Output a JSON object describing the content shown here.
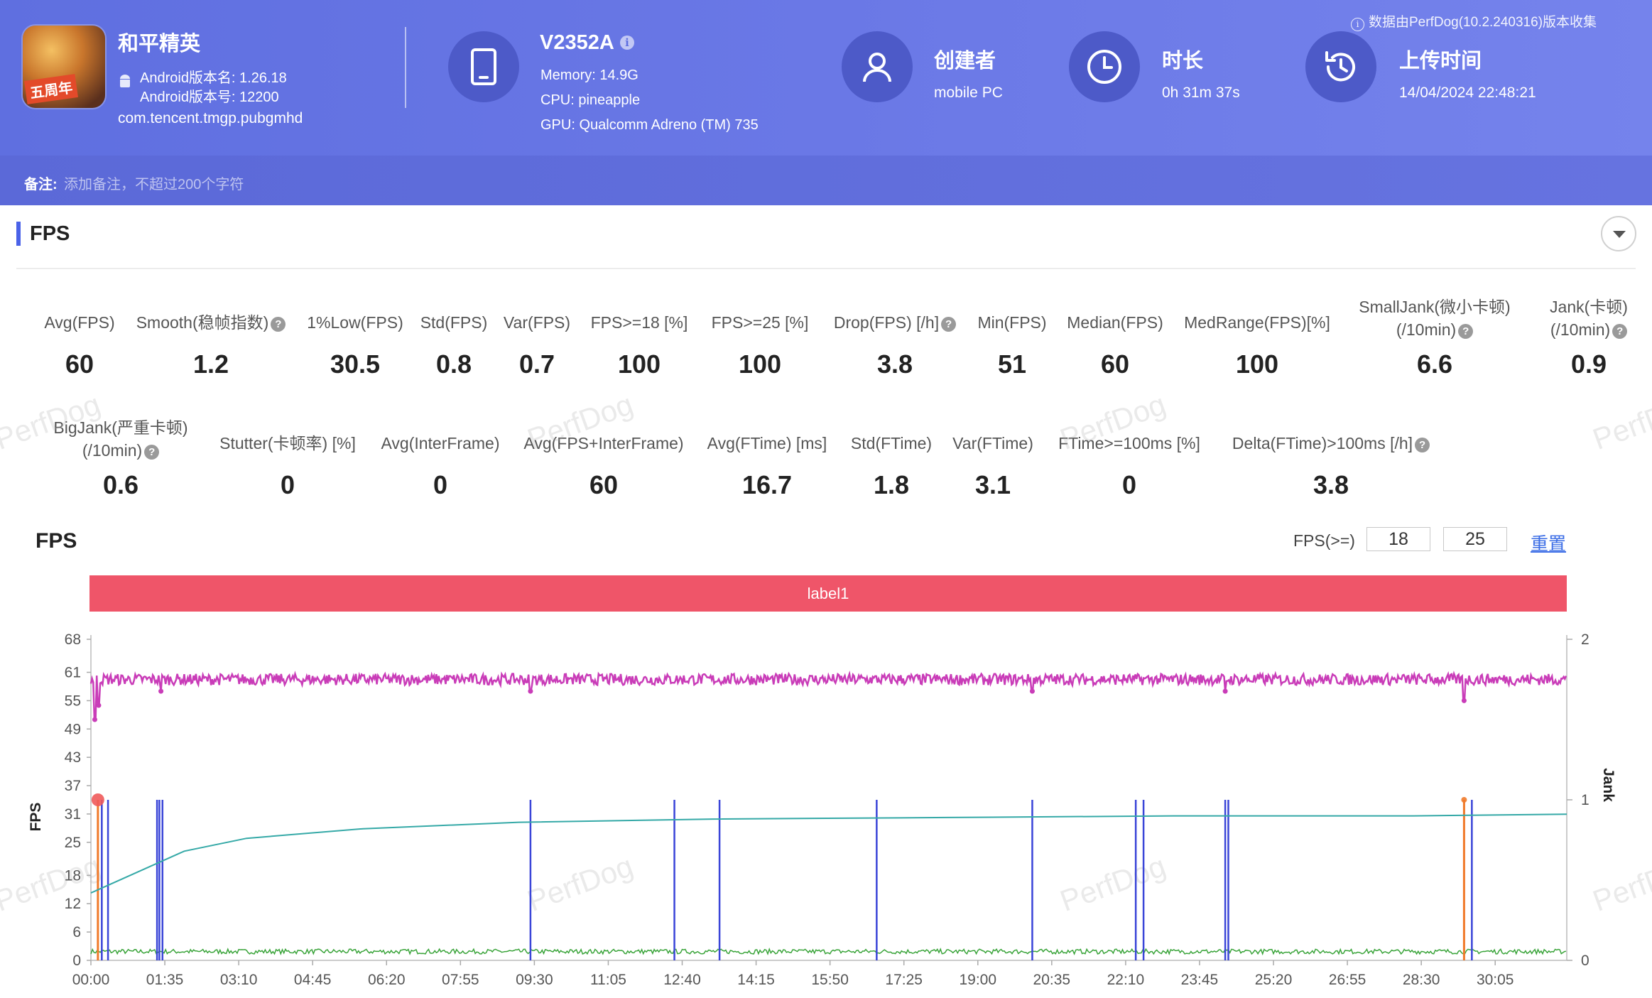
{
  "header": {
    "app_name": "和平精英",
    "app_icon_badge": "五周年",
    "android_version_name": "Android版本名: 1.26.18",
    "android_version_code": "Android版本号: 12200",
    "package": "com.tencent.tmgp.pubgmhd",
    "device": {
      "name": "V2352A",
      "info_glyph": "i",
      "memory": "Memory: 14.9G",
      "cpu": "CPU: pineapple",
      "gpu": "GPU: Qualcomm Adreno (TM) 735"
    },
    "creator": {
      "title": "创建者",
      "value": "mobile PC"
    },
    "duration": {
      "title": "时长",
      "value": "0h 31m 37s"
    },
    "upload": {
      "title": "上传时间",
      "value": "14/04/2024 22:48:21"
    },
    "collect_note": "数据由PerfDog(10.2.240316)版本收集",
    "remark_label": "备注:",
    "remark_placeholder": "添加备注，不超过200个字符"
  },
  "section": {
    "title": "FPS"
  },
  "stats_row1": [
    {
      "label": "Avg(FPS)",
      "value": "60"
    },
    {
      "label": "Smooth(稳帧指数)",
      "value": "1.2",
      "help": true
    },
    {
      "label": "1%Low(FPS)",
      "value": "30.5"
    },
    {
      "label": "Std(FPS)",
      "value": "0.8"
    },
    {
      "label": "Var(FPS)",
      "value": "0.7"
    },
    {
      "label": "FPS>=18 [%]",
      "value": "100"
    },
    {
      "label": "FPS>=25 [%]",
      "value": "100"
    },
    {
      "label": "Drop(FPS) [/h]",
      "value": "3.8",
      "help": true
    },
    {
      "label": "Min(FPS)",
      "value": "51"
    },
    {
      "label": "Median(FPS)",
      "value": "60"
    },
    {
      "label": "MedRange(FPS)[%]",
      "value": "100"
    },
    {
      "label": "SmallJank(微小卡顿)",
      "label2": "(/10min)",
      "value": "6.6",
      "help": true
    },
    {
      "label": "Jank(卡顿)",
      "label2": "(/10min)",
      "value": "0.9",
      "help": true
    }
  ],
  "stats_row2": [
    {
      "label": "BigJank(严重卡顿)",
      "label2": "(/10min)",
      "value": "0.6",
      "help": true
    },
    {
      "label": "Stutter(卡顿率) [%]",
      "value": "0"
    },
    {
      "label": "Avg(InterFrame)",
      "value": "0"
    },
    {
      "label": "Avg(FPS+InterFrame)",
      "value": "60"
    },
    {
      "label": "Avg(FTime) [ms]",
      "value": "16.7"
    },
    {
      "label": "Std(FTime)",
      "value": "1.8"
    },
    {
      "label": "Var(FTime)",
      "value": "3.1"
    },
    {
      "label": "FTime>=100ms [%]",
      "value": "0"
    },
    {
      "label": "Delta(FTime)>100ms [/h]",
      "value": "3.8",
      "help": true
    }
  ],
  "help_glyph": "?",
  "watermark_text": "PerfDog",
  "chart_header": {
    "title": "FPS",
    "threshold_label": "FPS(>=)",
    "threshold1": "18",
    "threshold2": "25",
    "reset_label": "重置",
    "label_bar": "label1"
  },
  "colors": {
    "fps_line": "#c93cb8",
    "jank_line": "#3a45d8",
    "bigjank_line": "#f07a2a",
    "smooth_line": "#35a9a7",
    "interframe_line": "#3aa43a",
    "label_bar": "#ef5569"
  },
  "chart_data": {
    "type": "line",
    "ylabel": "FPS",
    "y2label": "Jank",
    "y_ticks": [
      "0",
      "6",
      "12",
      "18",
      "25",
      "31",
      "37",
      "43",
      "49",
      "55",
      "61",
      "68"
    ],
    "y2_ticks": [
      "0",
      "1",
      "2"
    ],
    "x_ticks": [
      "00:00",
      "01:35",
      "03:10",
      "04:45",
      "06:20",
      "07:55",
      "09:30",
      "11:05",
      "12:40",
      "14:15",
      "15:50",
      "17:25",
      "19:00",
      "20:35",
      "22:10",
      "23:45",
      "25:20",
      "26:55",
      "28:30",
      "30:05"
    ],
    "x_range_seconds": [
      0,
      1897
    ],
    "ylim": [
      0,
      68
    ],
    "y2lim": [
      0,
      2
    ],
    "series": [
      {
        "kind": "fps",
        "typical": 60,
        "noise_band": [
          58,
          61
        ],
        "dips": [
          {
            "t": 5,
            "v": 51
          },
          {
            "t": 10,
            "v": 54
          },
          {
            "t": 90,
            "v": 57
          },
          {
            "t": 565,
            "v": 57
          },
          {
            "t": 1210,
            "v": 57
          },
          {
            "t": 1458,
            "v": 57
          },
          {
            "t": 1765,
            "v": 55
          }
        ]
      },
      {
        "kind": "jank",
        "spikes": [
          14,
          22,
          85,
          88,
          92,
          565,
          750,
          808,
          1010,
          1210,
          1343,
          1353,
          1458,
          1462,
          1775
        ]
      },
      {
        "kind": "bigjank",
        "spikes": [
          9,
          1765
        ]
      },
      {
        "kind": "smooth",
        "points": [
          [
            0,
            0.42
          ],
          [
            60,
            0.55
          ],
          [
            120,
            0.68
          ],
          [
            200,
            0.76
          ],
          [
            350,
            0.82
          ],
          [
            550,
            0.86
          ],
          [
            800,
            0.88
          ],
          [
            1100,
            0.89
          ],
          [
            1400,
            0.9
          ],
          [
            1700,
            0.9
          ],
          [
            1897,
            0.91
          ]
        ]
      },
      {
        "kind": "interframe",
        "baseline": 0.04
      }
    ]
  }
}
